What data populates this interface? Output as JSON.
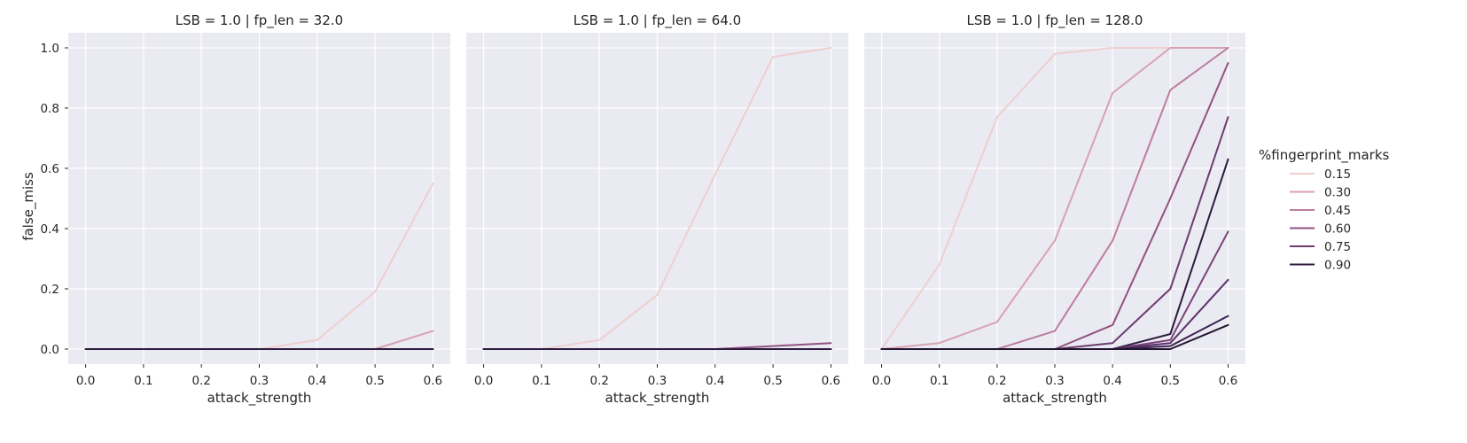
{
  "chart_data": [
    {
      "type": "line",
      "title": "LSB = 1.0 | fp_len = 32.0",
      "xlabel": "attack_strength",
      "ylabel": "false_miss",
      "x": [
        0.0,
        0.1,
        0.2,
        0.3,
        0.4,
        0.5,
        0.6
      ],
      "xlim": [
        -0.03,
        0.63
      ],
      "ylim": [
        -0.05,
        1.05
      ],
      "xticks": [
        "0.0",
        "0.1",
        "0.2",
        "0.3",
        "0.4",
        "0.5",
        "0.6"
      ],
      "yticks": [
        "0.0",
        "0.2",
        "0.4",
        "0.6",
        "0.8",
        "1.0"
      ],
      "grid": true,
      "series": [
        {
          "name": "0.15",
          "values": [
            0,
            0,
            0,
            0,
            0.03,
            0.19,
            0.55
          ]
        },
        {
          "name": "0.30",
          "values": [
            0,
            0,
            0,
            0,
            0,
            0,
            0.06
          ]
        },
        {
          "name": "0.45",
          "values": [
            0,
            0,
            0,
            0,
            0,
            0,
            0
          ]
        },
        {
          "name": "0.60",
          "values": [
            0,
            0,
            0,
            0,
            0,
            0,
            0
          ]
        },
        {
          "name": "0.75",
          "values": [
            0,
            0,
            0,
            0,
            0,
            0,
            0
          ]
        },
        {
          "name": "0.90",
          "values": [
            0,
            0,
            0,
            0,
            0,
            0,
            0
          ]
        }
      ]
    },
    {
      "type": "line",
      "title": "LSB = 1.0 | fp_len = 64.0",
      "xlabel": "attack_strength",
      "ylabel": "",
      "x": [
        0.0,
        0.1,
        0.2,
        0.3,
        0.4,
        0.5,
        0.6
      ],
      "xlim": [
        -0.03,
        0.63
      ],
      "ylim": [
        -0.05,
        1.05
      ],
      "xticks": [
        "0.0",
        "0.1",
        "0.2",
        "0.3",
        "0.4",
        "0.5",
        "0.6"
      ],
      "yticks": [],
      "grid": true,
      "series": [
        {
          "name": "0.15",
          "values": [
            0,
            0,
            0.03,
            0.18,
            0.58,
            0.97,
            1.0
          ]
        },
        {
          "name": "0.30",
          "values": [
            0,
            0,
            0,
            0,
            0,
            0,
            0
          ]
        },
        {
          "name": "0.45",
          "values": [
            0,
            0,
            0,
            0,
            0,
            0,
            0
          ]
        },
        {
          "name": "0.60",
          "values": [
            0,
            0,
            0,
            0,
            0,
            0.01,
            0.02
          ]
        },
        {
          "name": "0.75",
          "values": [
            0,
            0,
            0,
            0,
            0,
            0,
            0
          ]
        },
        {
          "name": "0.90",
          "values": [
            0,
            0,
            0,
            0,
            0,
            0,
            0
          ]
        }
      ]
    },
    {
      "type": "line",
      "title": "LSB = 1.0 | fp_len = 128.0",
      "xlabel": "attack_strength",
      "ylabel": "",
      "x": [
        0.0,
        0.1,
        0.2,
        0.3,
        0.4,
        0.5,
        0.6
      ],
      "xlim": [
        -0.03,
        0.63
      ],
      "ylim": [
        -0.05,
        1.05
      ],
      "xticks": [
        "0.0",
        "0.1",
        "0.2",
        "0.3",
        "0.4",
        "0.5",
        "0.6"
      ],
      "yticks": [],
      "grid": true,
      "series": [
        {
          "name": "0.15",
          "values": [
            0,
            0.28,
            0.77,
            0.98,
            1.0,
            1.0,
            1.0
          ]
        },
        {
          "name": "0.30",
          "values": [
            0,
            0.02,
            0.09,
            0.36,
            0.85,
            1.0,
            1.0
          ]
        },
        {
          "name": "0.45",
          "values": [
            0,
            0,
            0,
            0.06,
            0.36,
            0.86,
            1.0
          ]
        },
        {
          "name": "0.60",
          "values": [
            0,
            0,
            0,
            0,
            0.08,
            0.5,
            0.95
          ]
        },
        {
          "name": "0.75",
          "values": [
            0,
            0,
            0,
            0,
            0.02,
            0.2,
            0.77
          ]
        },
        {
          "name": "0.90",
          "values": [
            0,
            0,
            0,
            0,
            0,
            0.05,
            0.63
          ]
        }
      ],
      "extra_series": [
        {
          "values": [
            0,
            0,
            0,
            0,
            0,
            0.03,
            0.39
          ]
        },
        {
          "values": [
            0,
            0,
            0,
            0,
            0,
            0.02,
            0.23
          ]
        },
        {
          "values": [
            0,
            0,
            0,
            0,
            0,
            0.01,
            0.11
          ]
        },
        {
          "values": [
            0,
            0,
            0,
            0,
            0,
            0,
            0.08
          ]
        }
      ]
    }
  ],
  "legend": {
    "title": "%fingerprint_marks",
    "placement": "right",
    "entries": [
      {
        "label": "0.15",
        "color": "#efcfcf"
      },
      {
        "label": "0.30",
        "color": "#d8a2b1"
      },
      {
        "label": "0.45",
        "color": "#bd7d9e"
      },
      {
        "label": "0.60",
        "color": "#92527f"
      },
      {
        "label": "0.75",
        "color": "#6c3c6f"
      },
      {
        "label": "0.90",
        "color": "#2d1b3d"
      }
    ]
  },
  "extra_colors": [
    "#7b4379",
    "#5c316a",
    "#3c2450",
    "#21162e"
  ]
}
